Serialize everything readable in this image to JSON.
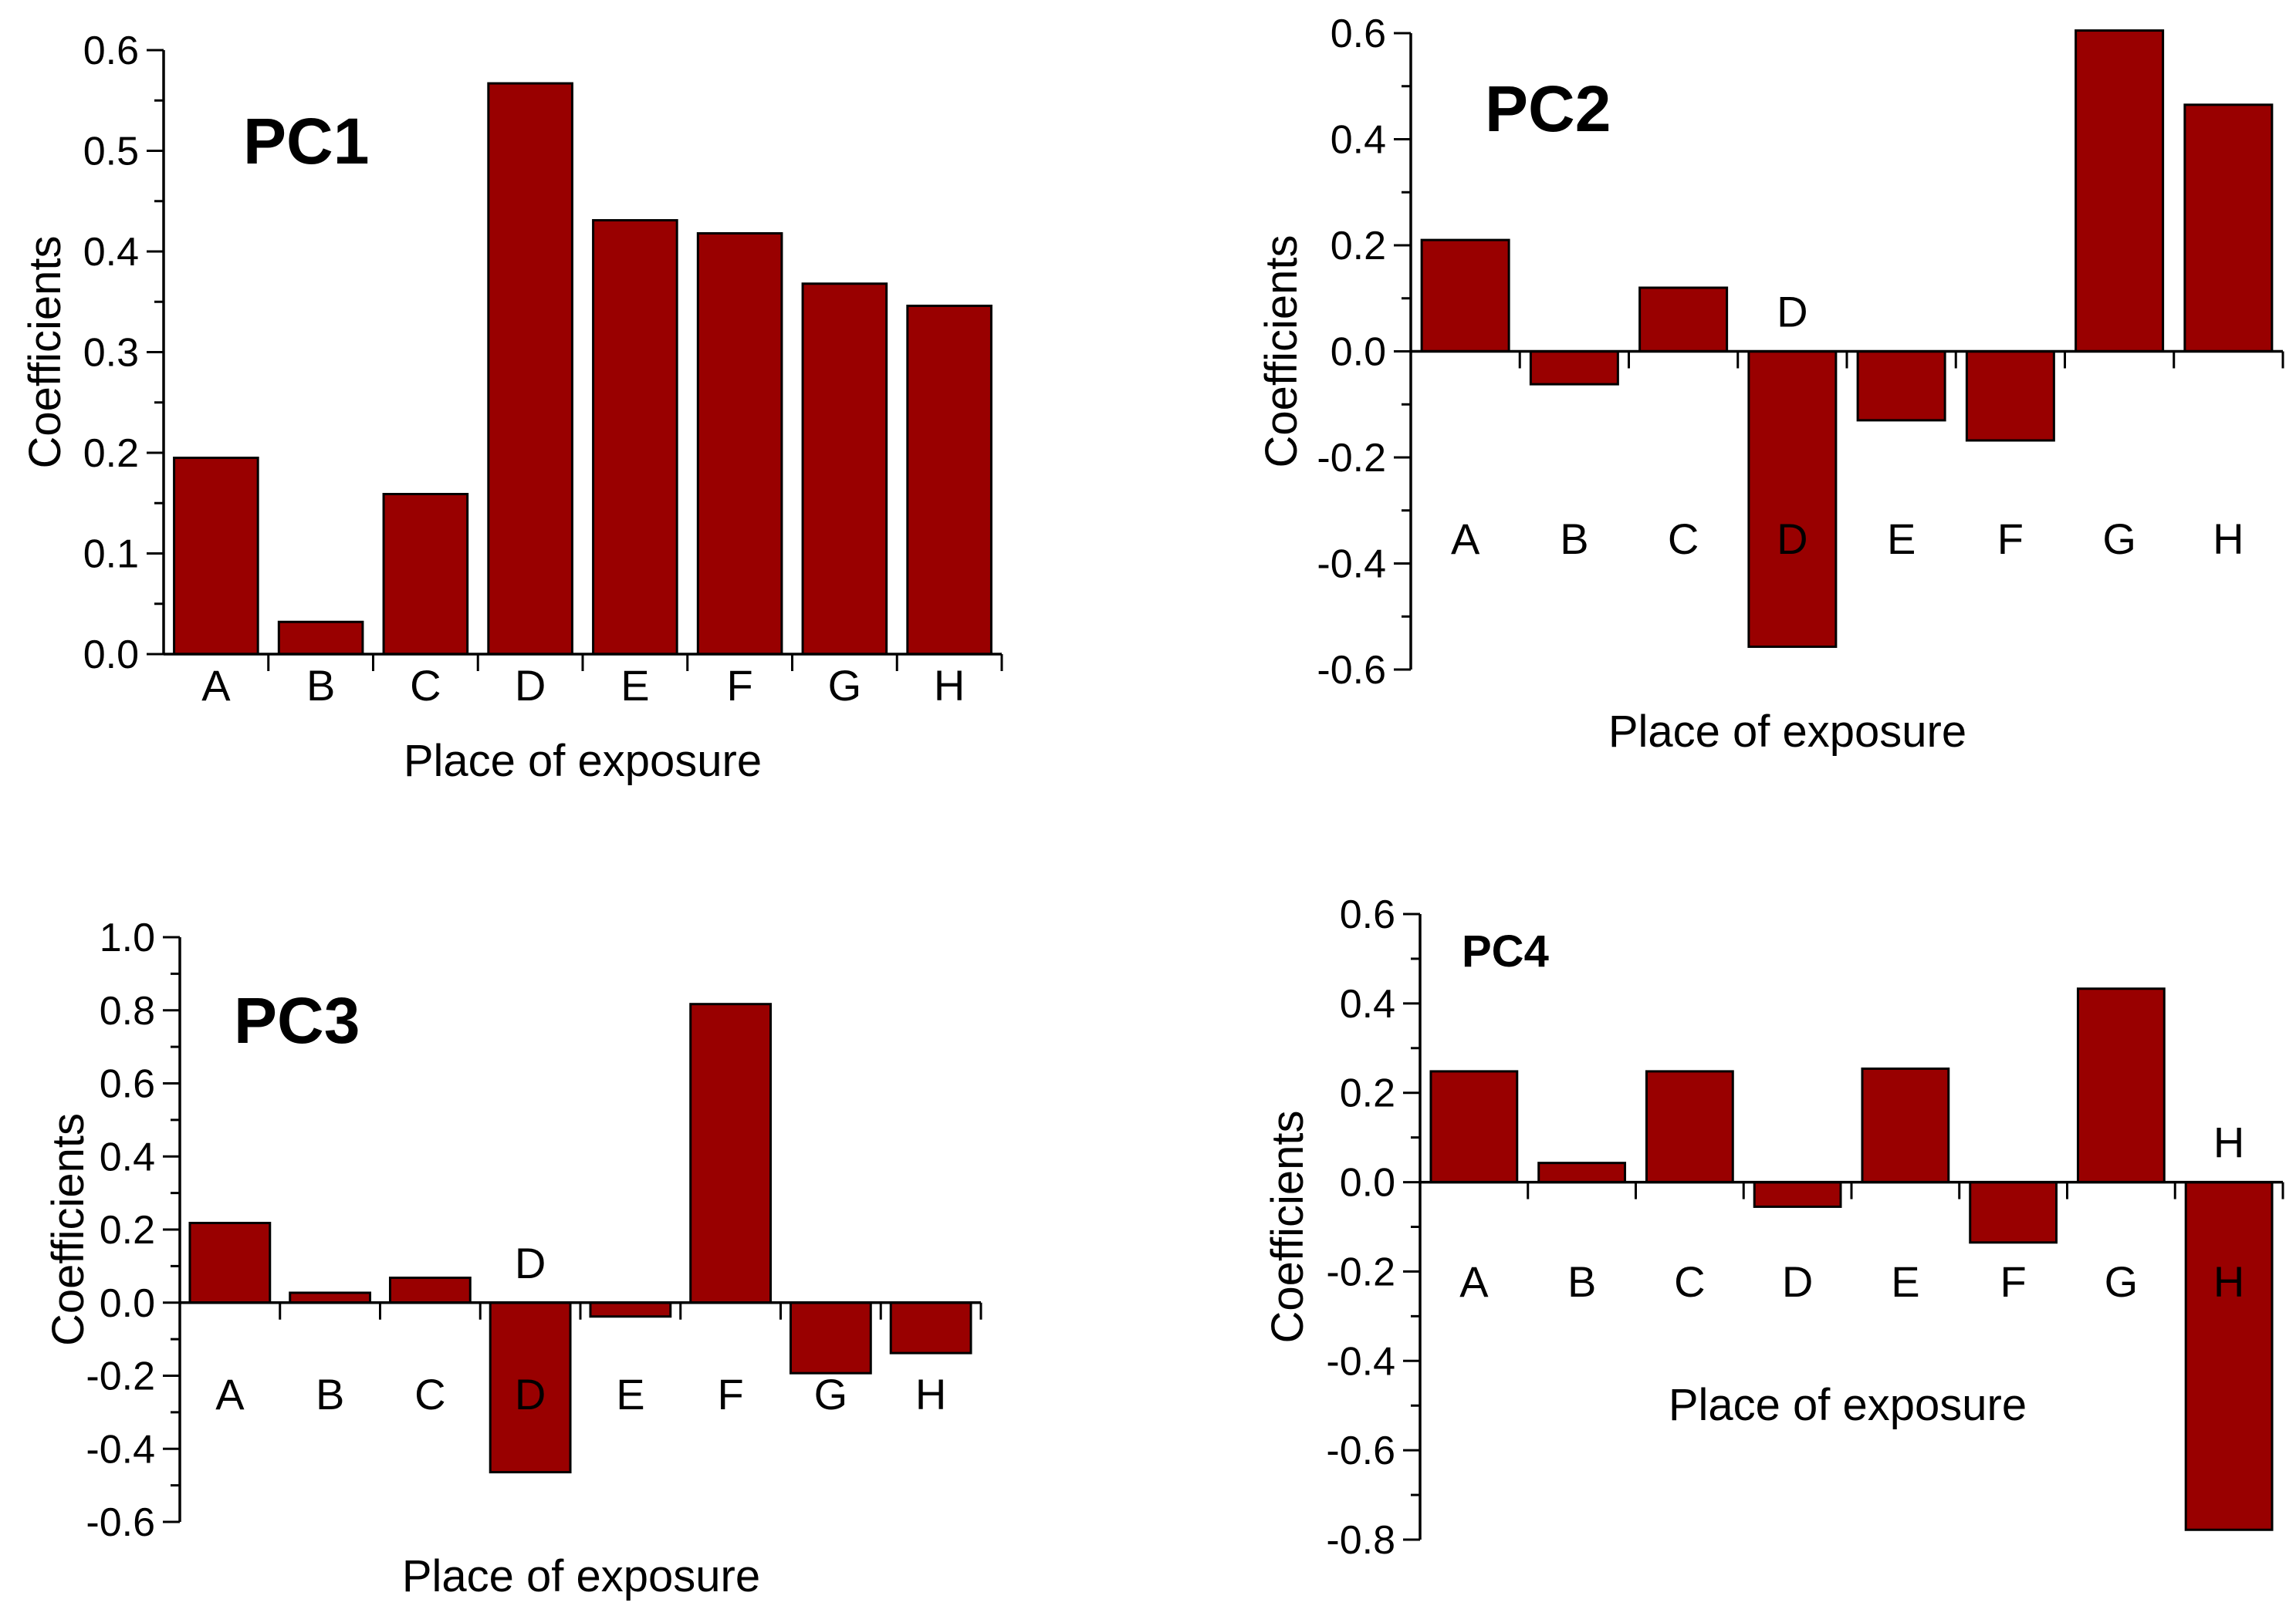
{
  "chart_data": [
    {
      "type": "bar",
      "title": "PC1",
      "xlabel": "Place of exposure",
      "ylabel": "Coefficients",
      "categories": [
        "A",
        "B",
        "C",
        "D",
        "E",
        "F",
        "G",
        "H"
      ],
      "values": [
        0.195,
        0.032,
        0.159,
        0.567,
        0.431,
        0.418,
        0.368,
        0.346
      ],
      "ylim": [
        0,
        0.6
      ],
      "yticks": [
        "0.0",
        "0.1",
        "0.2",
        "0.3",
        "0.4",
        "0.5",
        "0.6"
      ],
      "xtick_position": "below-axis",
      "extra_labels": [],
      "bar_color": "#990000"
    },
    {
      "type": "bar",
      "title": "PC2",
      "xlabel": "Place of exposure",
      "ylabel": "Coefficients",
      "categories": [
        "A",
        "B",
        "C",
        "D",
        "E",
        "F",
        "G",
        "H"
      ],
      "values": [
        0.21,
        -0.062,
        0.12,
        -0.557,
        -0.13,
        -0.168,
        0.605,
        0.465
      ],
      "ylim": [
        -0.6,
        0.6
      ],
      "yticks": [
        "-0.6",
        "-0.4",
        "-0.2",
        "0.0",
        "0.2",
        "0.4",
        "0.6"
      ],
      "xtick_position": "below-zero",
      "extra_labels": [
        {
          "category": "D",
          "text": "D"
        }
      ],
      "bar_color": "#990000"
    },
    {
      "type": "bar",
      "title": "PC3",
      "xlabel": "Place of exposure",
      "ylabel": "Coefficients",
      "categories": [
        "A",
        "B",
        "C",
        "D",
        "E",
        "F",
        "G",
        "H"
      ],
      "values": [
        0.218,
        0.027,
        0.068,
        -0.464,
        -0.038,
        0.817,
        -0.193,
        -0.138
      ],
      "ylim": [
        -0.6,
        1.0
      ],
      "yticks": [
        "-0.6",
        "-0.4",
        "-0.2",
        "0.0",
        "0.2",
        "0.4",
        "0.6",
        "0.8",
        "1.0"
      ],
      "xtick_position": "below-zero",
      "extra_labels": [
        {
          "category": "D",
          "text": "D"
        }
      ],
      "bar_color": "#990000"
    },
    {
      "type": "bar",
      "title": "PC4",
      "xlabel": "Place of exposure",
      "ylabel": "Coefficients",
      "categories": [
        "A",
        "B",
        "C",
        "D",
        "E",
        "F",
        "G",
        "H"
      ],
      "values": [
        0.248,
        0.043,
        0.248,
        -0.055,
        0.254,
        -0.135,
        0.433,
        -0.778
      ],
      "ylim": [
        -0.8,
        0.6
      ],
      "yticks": [
        "-0.8",
        "-0.6",
        "-0.4",
        "-0.2",
        "0.0",
        "0.2",
        "0.4",
        "0.6"
      ],
      "xtick_position": "below-zero",
      "extra_labels": [
        {
          "category": "H",
          "text": "H"
        }
      ],
      "bar_color": "#990000"
    }
  ]
}
